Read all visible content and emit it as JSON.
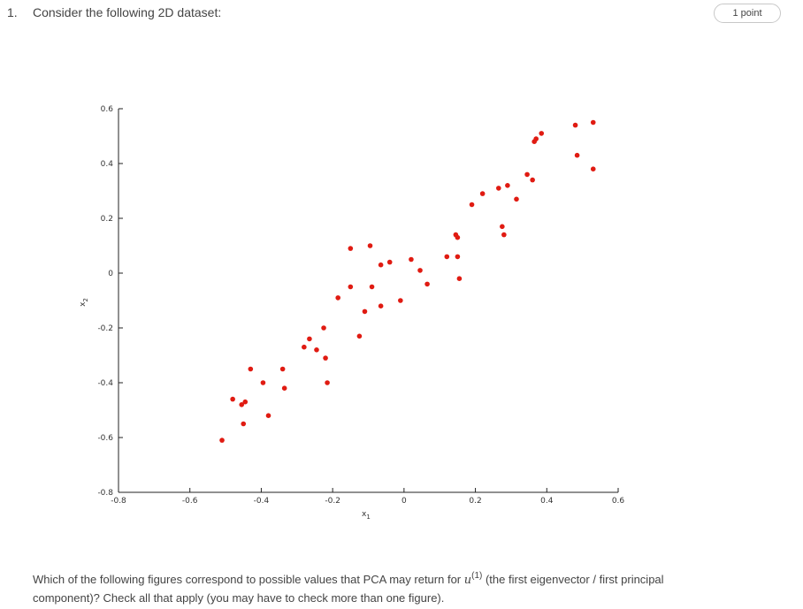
{
  "question": {
    "number": "1.",
    "title": "Consider the following 2D dataset:",
    "points_label": "1 point",
    "prompt_before": "Which of the following figures correspond to possible values that PCA may return for ",
    "prompt_var": "u",
    "prompt_sup": "(1)",
    "prompt_after": " (the first eigenvector / first principal component)? Check all that apply (you may have to check more than one figure)."
  },
  "chart_data": {
    "type": "scatter",
    "xlabel": "x1",
    "ylabel": "x2",
    "xlim": [
      -0.8,
      0.6
    ],
    "ylim": [
      -0.8,
      0.6
    ],
    "xticks": [
      "-0.8",
      "-0.6",
      "-0.4",
      "-0.2",
      "0",
      "0.2",
      "0.4",
      "0.6"
    ],
    "yticks": [
      "0.6",
      "0.4",
      "0.2",
      "0",
      "-0.2",
      "-0.4",
      "-0.6",
      "-0.8"
    ],
    "grid": false,
    "point_color": "#e01b12",
    "points": [
      [
        -0.51,
        -0.61
      ],
      [
        -0.48,
        -0.46
      ],
      [
        -0.455,
        -0.48
      ],
      [
        -0.445,
        -0.47
      ],
      [
        -0.45,
        -0.55
      ],
      [
        -0.43,
        -0.35
      ],
      [
        -0.395,
        -0.4
      ],
      [
        -0.38,
        -0.52
      ],
      [
        -0.34,
        -0.35
      ],
      [
        -0.335,
        -0.42
      ],
      [
        -0.28,
        -0.27
      ],
      [
        -0.265,
        -0.24
      ],
      [
        -0.245,
        -0.28
      ],
      [
        -0.225,
        -0.2
      ],
      [
        -0.22,
        -0.31
      ],
      [
        -0.215,
        -0.4
      ],
      [
        -0.185,
        -0.09
      ],
      [
        -0.15,
        0.09
      ],
      [
        -0.15,
        -0.05
      ],
      [
        -0.125,
        -0.23
      ],
      [
        -0.11,
        -0.14
      ],
      [
        -0.095,
        0.1
      ],
      [
        -0.09,
        -0.05
      ],
      [
        -0.065,
        -0.12
      ],
      [
        -0.065,
        0.03
      ],
      [
        -0.04,
        0.04
      ],
      [
        -0.01,
        -0.1
      ],
      [
        0.02,
        0.05
      ],
      [
        0.045,
        0.01
      ],
      [
        0.065,
        -0.04
      ],
      [
        0.12,
        0.06
      ],
      [
        0.145,
        0.14
      ],
      [
        0.15,
        0.13
      ],
      [
        0.15,
        0.06
      ],
      [
        0.155,
        -0.02
      ],
      [
        0.19,
        0.25
      ],
      [
        0.22,
        0.29
      ],
      [
        0.265,
        0.31
      ],
      [
        0.275,
        0.17
      ],
      [
        0.28,
        0.14
      ],
      [
        0.29,
        0.32
      ],
      [
        0.315,
        0.27
      ],
      [
        0.345,
        0.36
      ],
      [
        0.36,
        0.34
      ],
      [
        0.365,
        0.48
      ],
      [
        0.37,
        0.49
      ],
      [
        0.385,
        0.51
      ],
      [
        0.48,
        0.54
      ],
      [
        0.485,
        0.43
      ],
      [
        0.53,
        0.55
      ],
      [
        0.53,
        0.38
      ]
    ]
  }
}
